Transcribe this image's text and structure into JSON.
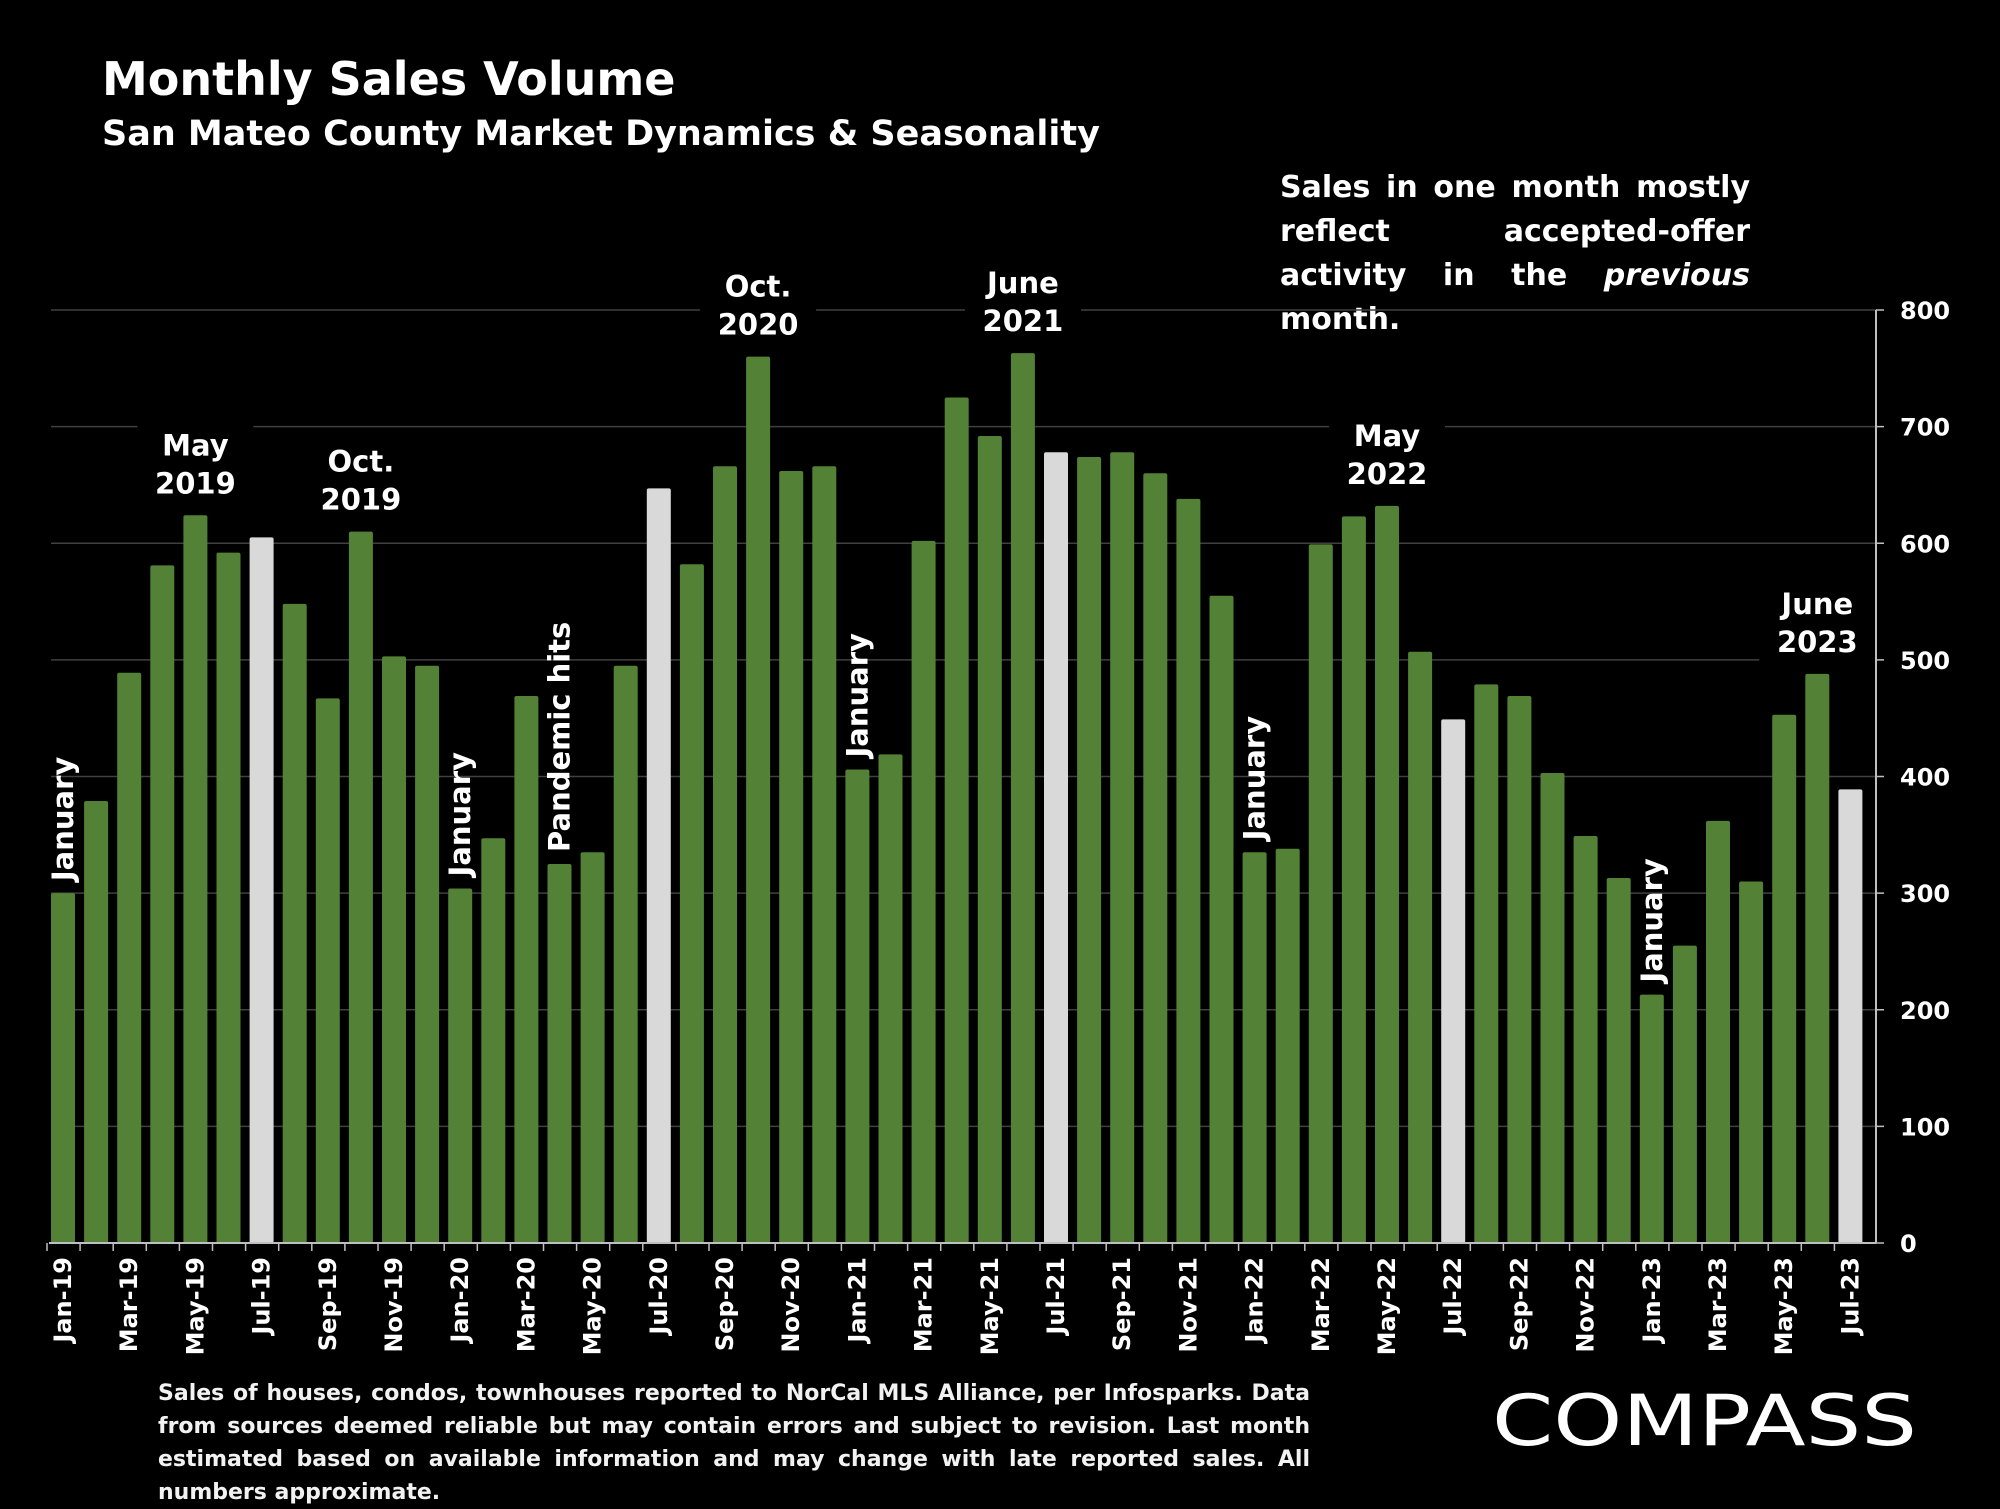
{
  "header": {
    "title": "Monthly Sales Volume",
    "subtitle": "San Mateo County Market Dynamics & Seasonality"
  },
  "note": {
    "part1": "Sales in one month mostly reflect accepted-offer activity in the ",
    "emphasis": "previous",
    "part2": " month."
  },
  "footnote": "Sales of houses, condos, townhouses reported to NorCal MLS Alliance, per Infosparks. Data from sources deemed reliable but may contain errors and subject to revision. Last month estimated based on available information and may change with late reported sales. All numbers approximate.",
  "logo": {
    "text": "COMPASS"
  },
  "colors": {
    "bar": "#538135",
    "highlight": "#d9d9d9",
    "background": "#000000",
    "grid": "#404040",
    "text": "#ffffff"
  },
  "chart_data": {
    "type": "bar",
    "title": "Monthly Sales Volume",
    "subtitle": "San Mateo County Market Dynamics & Seasonality",
    "ylim": [
      0,
      800
    ],
    "yticks": [
      0,
      100,
      200,
      300,
      400,
      500,
      600,
      700,
      800
    ],
    "y_axis_position": "right",
    "grid": true,
    "categories": [
      "Jan-19",
      "Feb-19",
      "Mar-19",
      "Apr-19",
      "May-19",
      "Jun-19",
      "Jul-19",
      "Aug-19",
      "Sep-19",
      "Oct-19",
      "Nov-19",
      "Dec-19",
      "Jan-20",
      "Feb-20",
      "Mar-20",
      "Apr-20",
      "May-20",
      "Jun-20",
      "Jul-20",
      "Aug-20",
      "Sep-20",
      "Oct-20",
      "Nov-20",
      "Dec-20",
      "Jan-21",
      "Feb-21",
      "Mar-21",
      "Apr-21",
      "May-21",
      "Jun-21",
      "Jul-21",
      "Aug-21",
      "Sep-21",
      "Oct-21",
      "Nov-21",
      "Dec-21",
      "Jan-22",
      "Feb-22",
      "Mar-22",
      "Apr-22",
      "May-22",
      "Jun-22",
      "Jul-22",
      "Aug-22",
      "Sep-22",
      "Oct-22",
      "Nov-22",
      "Dec-22",
      "Jan-23",
      "Feb-23",
      "Mar-23",
      "Apr-23",
      "May-23",
      "Jun-23",
      "Jul-23"
    ],
    "tick_labels": [
      "Jan-19",
      "Mar-19",
      "May-19",
      "Jul-19",
      "Sep-19",
      "Nov-19",
      "Jan-20",
      "Mar-20",
      "May-20",
      "Jul-20",
      "Sep-20",
      "Nov-20",
      "Jan-21",
      "Mar-21",
      "May-21",
      "Jul-21",
      "Sep-21",
      "Nov-21",
      "Jan-22",
      "Mar-22",
      "May-22",
      "Jul-22",
      "Sep-22",
      "Nov-22",
      "Jan-23",
      "Mar-23",
      "May-23",
      "Jul-23"
    ],
    "values": [
      300,
      379,
      489,
      581,
      624,
      592,
      605,
      548,
      467,
      610,
      503,
      495,
      304,
      347,
      469,
      325,
      335,
      495,
      647,
      582,
      666,
      760,
      662,
      666,
      406,
      419,
      602,
      725,
      692,
      763,
      678,
      674,
      678,
      660,
      638,
      555,
      335,
      338,
      599,
      623,
      632,
      507,
      449,
      479,
      469,
      403,
      349,
      313,
      213,
      255,
      362,
      310,
      453,
      488,
      389
    ],
    "highlighted_categories": [
      "Jul-19",
      "Jul-20",
      "Jul-21",
      "Jul-22",
      "Jul-23"
    ],
    "annotations": [
      {
        "text": [
          "January"
        ],
        "category": "Jan-19",
        "rotated": true
      },
      {
        "text": [
          "May",
          "2019"
        ],
        "category": "May-19",
        "rotated": false
      },
      {
        "text": [
          "Oct.",
          "2019"
        ],
        "category": "Oct-19",
        "rotated": false
      },
      {
        "text": [
          "January"
        ],
        "category": "Jan-20",
        "rotated": true
      },
      {
        "text": [
          "Pandemic hits"
        ],
        "category": "Apr-20",
        "rotated": true
      },
      {
        "text": [
          "Oct.",
          "2020"
        ],
        "category": "Oct-20",
        "rotated": false
      },
      {
        "text": [
          "January"
        ],
        "category": "Jan-21",
        "rotated": true
      },
      {
        "text": [
          "June",
          "2021"
        ],
        "category": "Jun-21",
        "rotated": false
      },
      {
        "text": [
          "May",
          "2022"
        ],
        "category": "May-22",
        "rotated": false
      },
      {
        "text": [
          "January"
        ],
        "category": "Jan-22",
        "rotated": true
      },
      {
        "text": [
          "January"
        ],
        "category": "Jan-23",
        "rotated": true
      },
      {
        "text": [
          "June",
          "2023"
        ],
        "category": "Jun-23",
        "rotated": false
      }
    ]
  }
}
